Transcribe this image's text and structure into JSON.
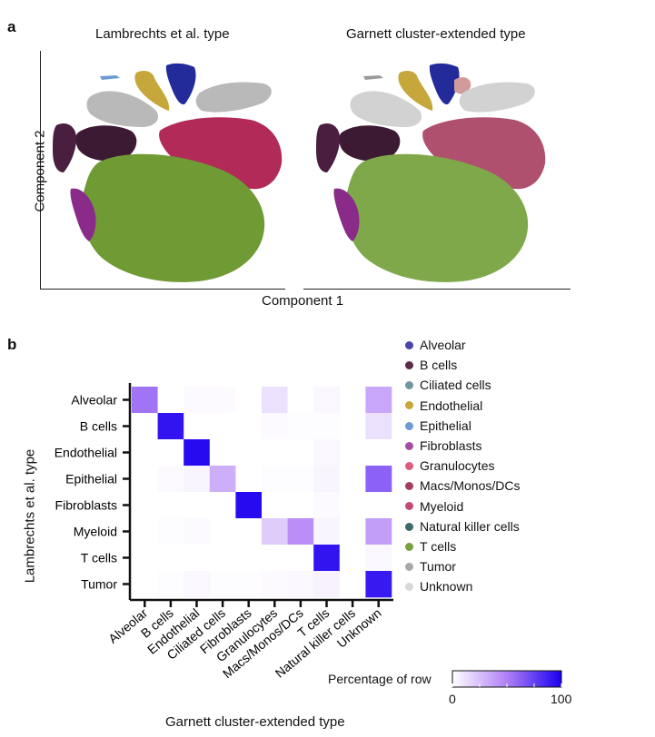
{
  "figure": {
    "panel_a": {
      "letter": "a",
      "left_title": "Lambrechts et al. type",
      "right_title": "Garnett cluster-extended type",
      "xlabel": "Component 1",
      "ylabel": "Component 2"
    },
    "panel_b": {
      "letter": "b",
      "xlabel": "Garnett cluster-extended type",
      "ylabel": "Lambrechts et al. type",
      "colorbar": {
        "title": "Percentage of row",
        "min_label": "0",
        "max_label": "100",
        "low_color": "#ffffff",
        "high_color": "#1a00f0"
      }
    },
    "legend": [
      {
        "label": "Alveolar",
        "color": "#4b45a8"
      },
      {
        "label": "B cells",
        "color": "#5c2a4a"
      },
      {
        "label": "Ciliated cells",
        "color": "#6e97a0"
      },
      {
        "label": "Endothelial",
        "color": "#c5a73b"
      },
      {
        "label": "Epithelial",
        "color": "#6e9ad0"
      },
      {
        "label": "Fibroblasts",
        "color": "#a24fa4"
      },
      {
        "label": "Granulocytes",
        "color": "#e05a7c"
      },
      {
        "label": "Macs/Monos/DCs",
        "color": "#a33d62"
      },
      {
        "label": "Myeloid",
        "color": "#c44a72"
      },
      {
        "label": "Natural killer cells",
        "color": "#3e6b6a"
      },
      {
        "label": "T cells",
        "color": "#76a043"
      },
      {
        "label": "Tumor",
        "color": "#a8a8a8"
      },
      {
        "label": "Unknown",
        "color": "#d8d8d8"
      }
    ]
  },
  "chart_data": {
    "type": "heatmap",
    "xlabel": "Garnett cluster-extended type",
    "ylabel": "Lambrechts et al. type",
    "x_categories": [
      "Alveolar",
      "B cells",
      "Endothelial",
      "Ciliated cells",
      "Fibroblasts",
      "Granulocytes",
      "Macs/Monos/DCs",
      "T cells",
      "Natural killer cells",
      "Unknown"
    ],
    "y_categories": [
      "Alveolar",
      "B cells",
      "Endothelial",
      "Epithelial",
      "Fibroblasts",
      "Myeloid",
      "T cells",
      "Tumor"
    ],
    "value_range": [
      0,
      100
    ],
    "values": [
      [
        55,
        0,
        2,
        2,
        0,
        12,
        0,
        3,
        0,
        35
      ],
      [
        0,
        92,
        0,
        0,
        0,
        2,
        1,
        1,
        0,
        12
      ],
      [
        0,
        0,
        96,
        0,
        0,
        0,
        0,
        3,
        0,
        0
      ],
      [
        0,
        2,
        4,
        32,
        0,
        1,
        1,
        4,
        0,
        62
      ],
      [
        0,
        0,
        0,
        0,
        96,
        0,
        0,
        2,
        0,
        0
      ],
      [
        0,
        1,
        2,
        0,
        0,
        20,
        44,
        4,
        0,
        38
      ],
      [
        0,
        0,
        0,
        0,
        0,
        0,
        0,
        92,
        0,
        3
      ],
      [
        0,
        1,
        3,
        1,
        1,
        2,
        3,
        5,
        0,
        90
      ]
    ]
  }
}
